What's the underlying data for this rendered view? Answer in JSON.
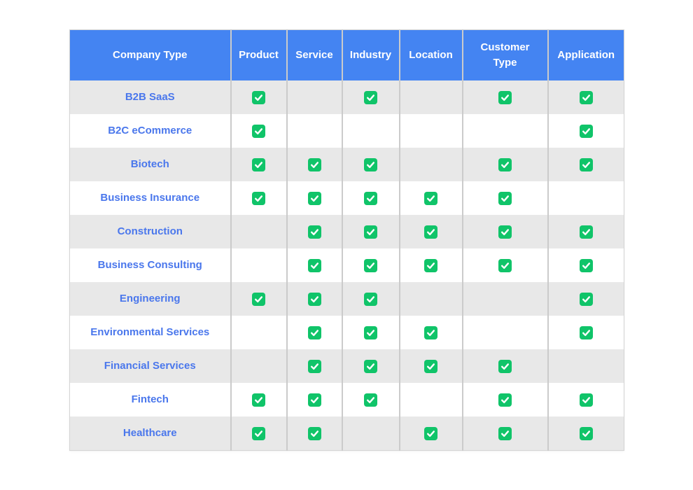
{
  "page": {
    "background": "#FFFFFF"
  },
  "colors": {
    "header_bg": "#4484F2",
    "header_text": "#FFFFFF",
    "row_label_text": "#4A77EC",
    "check_green": "#10C469",
    "check_mark": "#FFFFFF",
    "row_odd_bg": "#E8E8E8",
    "row_even_bg": "#FFFFFF",
    "cell_divider": "#CBCBCB",
    "table_outer_border": "#D4D4D4"
  },
  "icons": {
    "check": "✓"
  },
  "chart_data": {
    "type": "table",
    "title": "",
    "columns": [
      "Company Type",
      "Product",
      "Service",
      "Industry",
      "Location",
      "Customer Type",
      "Application"
    ],
    "rows": [
      {
        "label": "B2B SaaS",
        "checks": [
          true,
          false,
          true,
          false,
          true,
          true
        ]
      },
      {
        "label": "B2C eCommerce",
        "checks": [
          true,
          false,
          false,
          false,
          false,
          true
        ]
      },
      {
        "label": "Biotech",
        "checks": [
          true,
          true,
          true,
          false,
          true,
          true
        ]
      },
      {
        "label": "Business Insurance",
        "checks": [
          true,
          true,
          true,
          true,
          true,
          false
        ]
      },
      {
        "label": "Construction",
        "checks": [
          false,
          true,
          true,
          true,
          true,
          true
        ]
      },
      {
        "label": "Business Consulting",
        "checks": [
          false,
          true,
          true,
          true,
          true,
          true
        ]
      },
      {
        "label": "Engineering",
        "checks": [
          true,
          true,
          true,
          false,
          false,
          true
        ]
      },
      {
        "label": "Environmental Services",
        "checks": [
          false,
          true,
          true,
          true,
          false,
          true
        ]
      },
      {
        "label": "Financial Services",
        "checks": [
          false,
          true,
          true,
          true,
          true,
          false
        ]
      },
      {
        "label": "Fintech",
        "checks": [
          true,
          true,
          true,
          false,
          true,
          true
        ]
      },
      {
        "label": "Healthcare",
        "checks": [
          true,
          true,
          false,
          true,
          true,
          true
        ]
      }
    ]
  }
}
